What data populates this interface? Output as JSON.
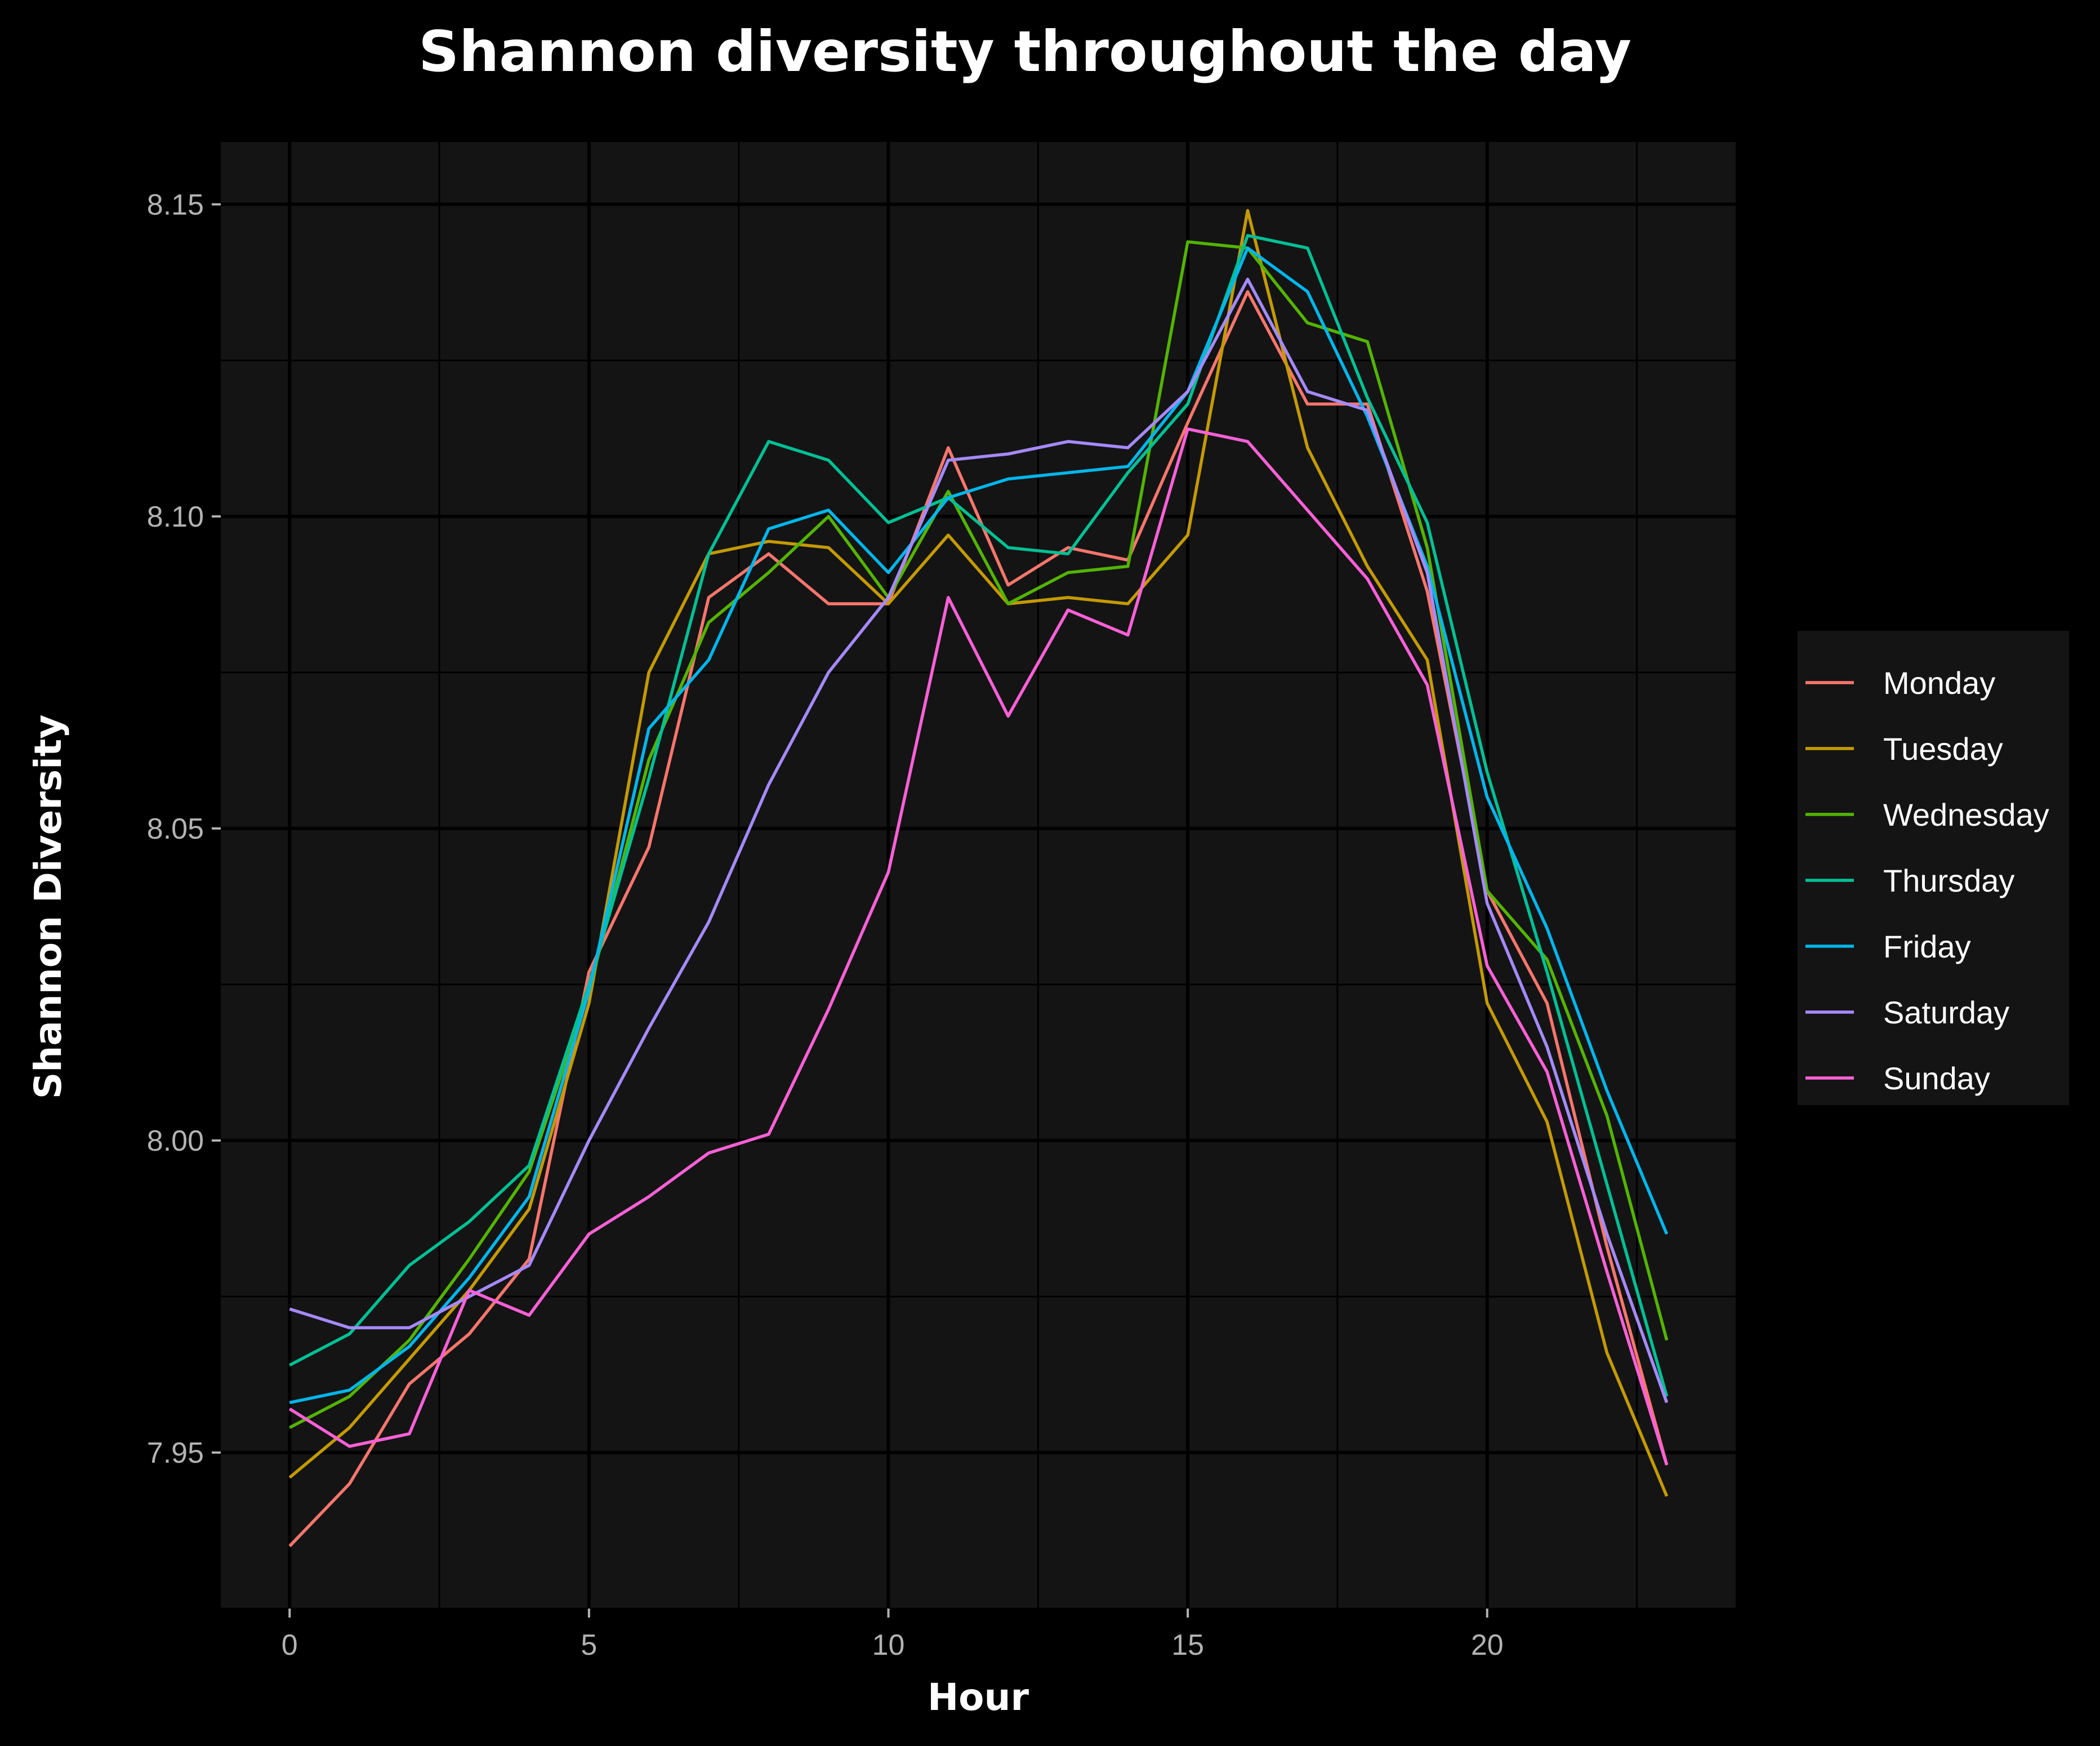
{
  "chart_data": {
    "type": "line",
    "title": "Shannon diversity throughout the day",
    "xlabel": "Hour",
    "ylabel": "Shannon Diversity",
    "xlim": [
      -1.15,
      24.15
    ],
    "ylim": [
      7.925,
      8.16
    ],
    "x_ticks": [
      0,
      5,
      10,
      15,
      20
    ],
    "y_ticks": [
      7.95,
      8.0,
      8.05,
      8.1,
      8.15
    ],
    "x_tick_labels": [
      "0",
      "5",
      "10",
      "15",
      "20"
    ],
    "y_tick_labels": [
      "7.95",
      "8.00",
      "8.05",
      "8.10",
      "8.15"
    ],
    "grid": true,
    "legend_position": "right",
    "colors": {
      "background": "#000000",
      "panel": "#141414",
      "grid": "#000000"
    },
    "x": [
      0,
      1,
      2,
      3,
      4,
      5,
      6,
      7,
      8,
      9,
      10,
      11,
      12,
      13,
      14,
      15,
      16,
      17,
      18,
      19,
      20,
      21,
      22,
      23
    ],
    "series": [
      {
        "name": "Monday",
        "color": "#F8766D",
        "values": [
          7.935,
          7.945,
          7.961,
          7.969,
          7.981,
          8.027,
          8.047,
          8.087,
          8.094,
          8.086,
          8.086,
          8.111,
          8.089,
          8.095,
          8.093,
          8.115,
          8.136,
          8.118,
          8.118,
          8.088,
          8.04,
          8.022,
          7.983,
          7.948
        ]
      },
      {
        "name": "Tuesday",
        "color": "#C49A00",
        "values": [
          7.946,
          7.954,
          7.965,
          7.976,
          7.989,
          8.022,
          8.075,
          8.094,
          8.096,
          8.095,
          8.086,
          8.097,
          8.086,
          8.087,
          8.086,
          8.097,
          8.149,
          8.111,
          8.092,
          8.077,
          8.022,
          8.003,
          7.966,
          7.943
        ]
      },
      {
        "name": "Wednesday",
        "color": "#53B400",
        "values": [
          7.954,
          7.959,
          7.968,
          7.981,
          7.995,
          8.024,
          8.061,
          8.083,
          8.091,
          8.1,
          8.087,
          8.104,
          8.086,
          8.091,
          8.092,
          8.144,
          8.143,
          8.131,
          8.128,
          8.095,
          8.04,
          8.029,
          8.004,
          7.968
        ]
      },
      {
        "name": "Thursday",
        "color": "#00C094",
        "values": [
          7.964,
          7.969,
          7.98,
          7.987,
          7.996,
          8.025,
          8.058,
          8.094,
          8.112,
          8.109,
          8.099,
          8.103,
          8.095,
          8.094,
          8.107,
          8.118,
          8.145,
          8.143,
          8.119,
          8.099,
          8.059,
          8.027,
          7.993,
          7.959
        ]
      },
      {
        "name": "Friday",
        "color": "#00B6EB",
        "values": [
          7.958,
          7.96,
          7.967,
          7.978,
          7.991,
          8.024,
          8.066,
          8.077,
          8.098,
          8.101,
          8.091,
          8.103,
          8.106,
          8.107,
          8.108,
          8.12,
          8.143,
          8.136,
          8.116,
          8.092,
          8.055,
          8.034,
          8.008,
          7.985
        ]
      },
      {
        "name": "Saturday",
        "color": "#A58AFF",
        "values": [
          7.973,
          7.97,
          7.97,
          7.975,
          7.98,
          8.0,
          8.018,
          8.035,
          8.057,
          8.075,
          8.087,
          8.109,
          8.11,
          8.112,
          8.111,
          8.12,
          8.138,
          8.12,
          8.117,
          8.091,
          8.038,
          8.015,
          7.985,
          7.958
        ]
      },
      {
        "name": "Sunday",
        "color": "#FB61D7",
        "values": [
          7.957,
          7.951,
          7.953,
          7.976,
          7.972,
          7.985,
          7.991,
          7.998,
          8.001,
          8.021,
          8.043,
          8.087,
          8.068,
          8.085,
          8.081,
          8.114,
          8.112,
          8.101,
          8.09,
          8.073,
          8.028,
          8.011,
          7.979,
          7.948
        ]
      }
    ]
  }
}
